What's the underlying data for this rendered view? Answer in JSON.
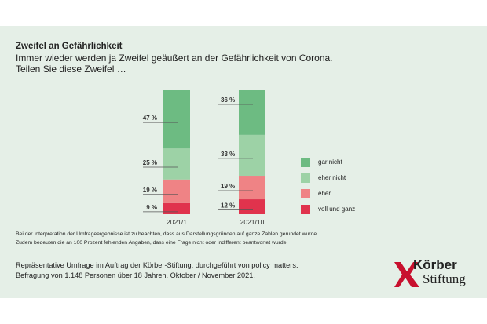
{
  "header": {
    "title": "Zweifel an Gefährlichkeit",
    "subtitle_line1": "Immer wieder werden ja Zweifel geäußert an der Gefährlichkeit von Corona.",
    "subtitle_line2": "Teilen Sie diese Zweifel …"
  },
  "chart_data": {
    "type": "bar",
    "stacked": true,
    "categories": [
      "2021/1",
      "2021/10"
    ],
    "series": [
      {
        "name": "voll und ganz",
        "values": [
          9,
          12
        ],
        "color": "#e0334d"
      },
      {
        "name": "eher",
        "values": [
          19,
          19
        ],
        "color": "#ef8385"
      },
      {
        "name": "eher nicht",
        "values": [
          25,
          33
        ],
        "color": "#9dd2a6"
      },
      {
        "name": "gar nicht",
        "values": [
          47,
          36
        ],
        "color": "#6dbb82"
      }
    ],
    "value_suffix": " %",
    "ylim": [
      0,
      100
    ],
    "legend": {
      "placement": "right",
      "order": [
        "gar nicht",
        "eher nicht",
        "eher",
        "voll und ganz"
      ]
    },
    "grid": false
  },
  "footnote": {
    "line1": "Bei der Interpretation der Umfrageergebnisse ist zu beachten, dass aus Darstellungsgründen auf ganze Zahlen gerundet wurde.",
    "line2": "Zudem bedeuten die an 100 Prozent fehlenden Angaben, dass eine Frage nicht oder indifferent beantwortet wurde."
  },
  "source": {
    "line1": "Repräsentative Umfrage im Auftrag der Körber-Stiftung, durchgeführt von policy matters.",
    "line2": "Befragung von 1.148 Personen über 18 Jahren, Oktober / November 2021."
  },
  "logo": {
    "line1": "Körber",
    "line2": "Stiftung",
    "color": "#c8102e"
  }
}
